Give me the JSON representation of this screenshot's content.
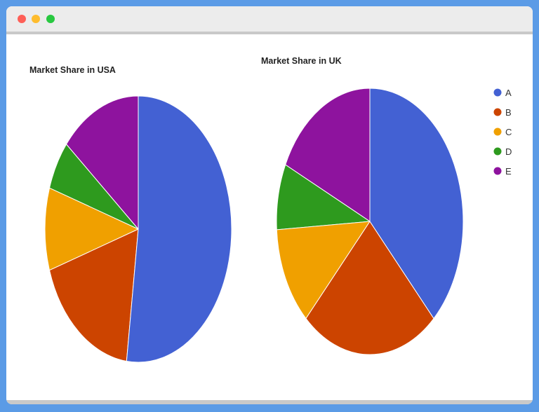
{
  "window": {
    "controls": [
      "close",
      "minimize",
      "zoom"
    ],
    "colors": {
      "close": "#fe5f57",
      "minimize": "#febc2e",
      "zoom": "#28c840"
    }
  },
  "chart_data": [
    {
      "type": "pie",
      "title": "Market Share in USA",
      "categories": [
        "A",
        "B",
        "C",
        "D",
        "E"
      ],
      "values": [
        52,
        18,
        10,
        6,
        14
      ],
      "colors": [
        "#4361d3",
        "#cc4400",
        "#f0a000",
        "#2e9a1e",
        "#8e139e"
      ],
      "start_angle": "12 o'clock",
      "direction": "clockwise"
    },
    {
      "type": "pie",
      "title": "Market Share in UK",
      "categories": [
        "A",
        "B",
        "C",
        "D",
        "E"
      ],
      "values": [
        38,
        24,
        12,
        8,
        18
      ],
      "colors": [
        "#4361d3",
        "#cc4400",
        "#f0a000",
        "#2e9a1e",
        "#8e139e"
      ],
      "start_angle": "12 o'clock",
      "direction": "clockwise"
    }
  ],
  "legend": {
    "placement": "right",
    "items": [
      {
        "label": "A",
        "color": "#4361d3"
      },
      {
        "label": "B",
        "color": "#cc4400"
      },
      {
        "label": "C",
        "color": "#f0a000"
      },
      {
        "label": "D",
        "color": "#2e9a1e"
      },
      {
        "label": "E",
        "color": "#8e139e"
      }
    ]
  }
}
